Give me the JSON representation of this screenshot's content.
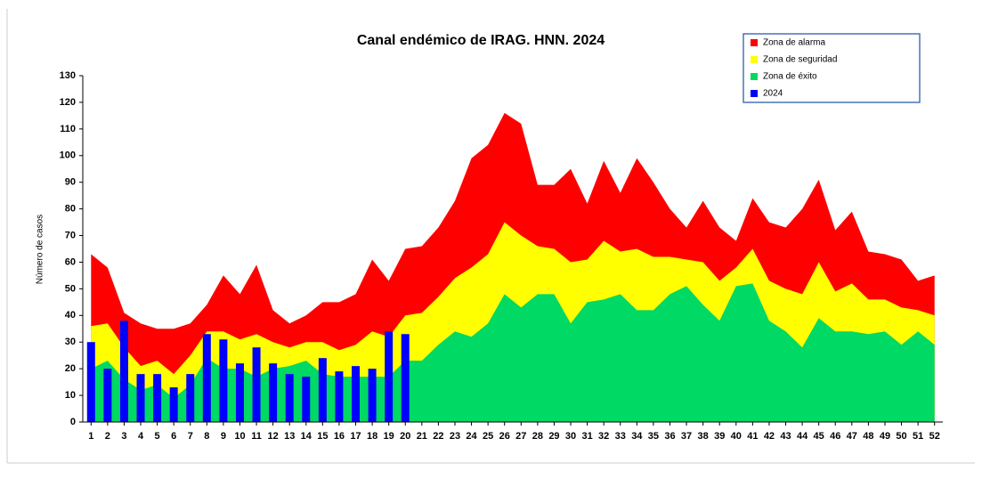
{
  "chart_data": {
    "type": "area",
    "title": "Canal endémico de IRAG. HNN. 2024",
    "y_label": "Número de casos",
    "x": [
      1,
      2,
      3,
      4,
      5,
      6,
      7,
      8,
      9,
      10,
      11,
      12,
      13,
      14,
      15,
      16,
      17,
      18,
      19,
      20,
      21,
      22,
      23,
      24,
      25,
      26,
      27,
      28,
      29,
      30,
      31,
      32,
      33,
      34,
      35,
      36,
      37,
      38,
      39,
      40,
      41,
      42,
      43,
      44,
      45,
      46,
      47,
      48,
      49,
      50,
      51,
      52
    ],
    "xlim": [
      0.5,
      52.5
    ],
    "ylim": [
      0,
      130
    ],
    "yticks": [
      0,
      10,
      20,
      30,
      40,
      50,
      60,
      70,
      80,
      90,
      100,
      110,
      120,
      130
    ],
    "legend": "top-right",
    "series": [
      {
        "name": "Zona de alarma",
        "color": "#ff0000",
        "type": "area",
        "values": [
          63,
          58,
          41,
          37,
          35,
          35,
          37,
          44,
          55,
          48,
          59,
          42,
          37,
          40,
          45,
          45,
          48,
          61,
          53,
          65,
          66,
          73,
          83,
          99,
          104,
          116,
          112,
          89,
          89,
          95,
          82,
          98,
          86,
          99,
          90,
          80,
          73,
          83,
          73,
          68,
          84,
          75,
          73,
          80,
          91,
          72,
          79,
          64,
          63,
          61,
          53,
          55
        ]
      },
      {
        "name": "Zona de seguridad",
        "color": "#ffff00",
        "type": "area",
        "values": [
          36,
          37,
          28,
          21,
          23,
          18,
          25,
          34,
          34,
          31,
          33,
          30,
          28,
          30,
          30,
          27,
          29,
          34,
          32,
          40,
          41,
          47,
          54,
          58,
          63,
          75,
          70,
          66,
          65,
          60,
          61,
          68,
          64,
          65,
          62,
          62,
          61,
          60,
          53,
          58,
          65,
          53,
          50,
          48,
          60,
          49,
          52,
          46,
          46,
          43,
          42,
          40
        ]
      },
      {
        "name": "Zona de éxito",
        "color": "#00d964",
        "type": "area",
        "values": [
          20,
          23,
          16,
          12,
          14,
          9,
          14,
          24,
          20,
          20,
          17,
          20,
          21,
          23,
          18,
          17,
          17,
          17,
          17,
          23,
          23,
          29,
          34,
          32,
          37,
          48,
          43,
          48,
          48,
          37,
          45,
          46,
          48,
          42,
          42,
          48,
          51,
          44,
          38,
          51,
          52,
          38,
          34,
          28,
          39,
          34,
          34,
          33,
          34,
          29,
          34,
          29
        ]
      },
      {
        "name": "2024",
        "color": "#0000ff",
        "type": "bar",
        "values": [
          30,
          20,
          38,
          18,
          18,
          13,
          18,
          33,
          31,
          22,
          28,
          22,
          18,
          17,
          24,
          19,
          21,
          20,
          34,
          33,
          null,
          null,
          null,
          null,
          null,
          null,
          null,
          null,
          null,
          null,
          null,
          null,
          null,
          null,
          null,
          null,
          null,
          null,
          null,
          null,
          null,
          null,
          null,
          null,
          null,
          null,
          null,
          null,
          null,
          null,
          null,
          null
        ]
      }
    ]
  }
}
